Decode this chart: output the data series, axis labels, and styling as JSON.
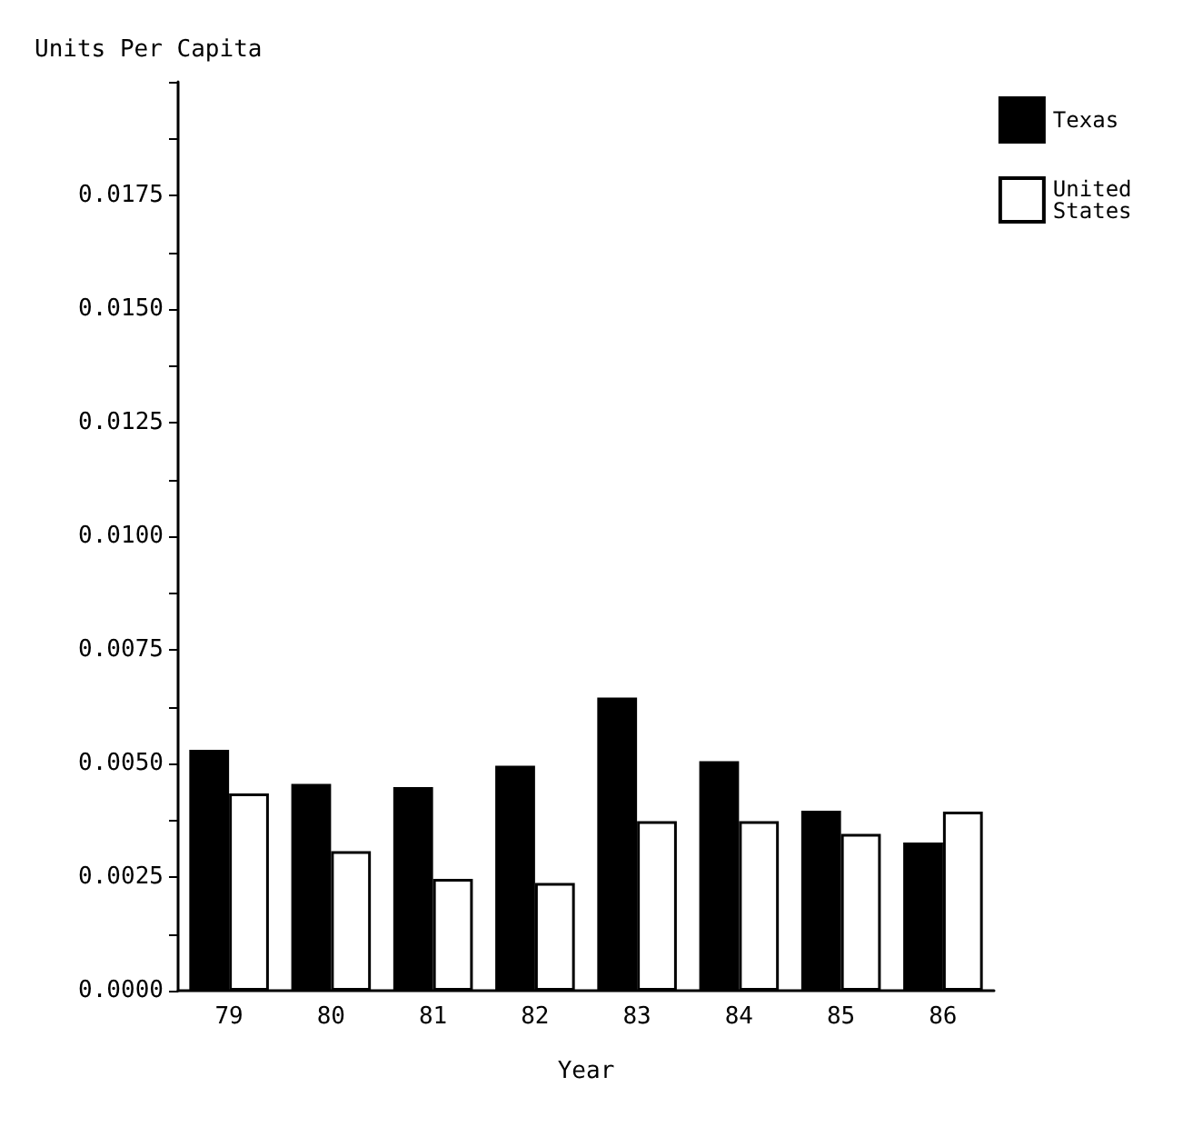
{
  "chart_data": {
    "type": "bar",
    "ylabel": "Units Per Capita",
    "xlabel": "Year",
    "categories": [
      "79",
      "80",
      "81",
      "82",
      "83",
      "84",
      "85",
      "86"
    ],
    "series": [
      {
        "name": "Texas",
        "color": "#000000",
        "values": [
          0.0053,
          0.00455,
          0.00448,
          0.00495,
          0.00645,
          0.00505,
          0.00396,
          0.00326
        ]
      },
      {
        "name": "United States",
        "color": "#ffffff",
        "values": [
          0.00434,
          0.00307,
          0.00246,
          0.00237,
          0.00373,
          0.00373,
          0.00345,
          0.00394
        ]
      }
    ],
    "ylim": [
      0,
      0.02
    ],
    "yticks": [
      {
        "value": 0,
        "label": "0.0000"
      },
      {
        "value": 0.00125,
        "label": null
      },
      {
        "value": 0.0025,
        "label": "0.0025"
      },
      {
        "value": 0.00375,
        "label": null
      },
      {
        "value": 0.005,
        "label": "0.0050"
      },
      {
        "value": 0.00625,
        "label": null
      },
      {
        "value": 0.0075,
        "label": "0.0075"
      },
      {
        "value": 0.00875,
        "label": null
      },
      {
        "value": 0.01,
        "label": "0.0100"
      },
      {
        "value": 0.01125,
        "label": null
      },
      {
        "value": 0.0125,
        "label": "0.0125"
      },
      {
        "value": 0.01375,
        "label": null
      },
      {
        "value": 0.015,
        "label": "0.0150"
      },
      {
        "value": 0.01625,
        "label": null
      },
      {
        "value": 0.0175,
        "label": "0.0175"
      },
      {
        "value": 0.01875,
        "label": null
      },
      {
        "value": 0.02,
        "label": null
      }
    ],
    "grid": false,
    "legend": "top right"
  }
}
